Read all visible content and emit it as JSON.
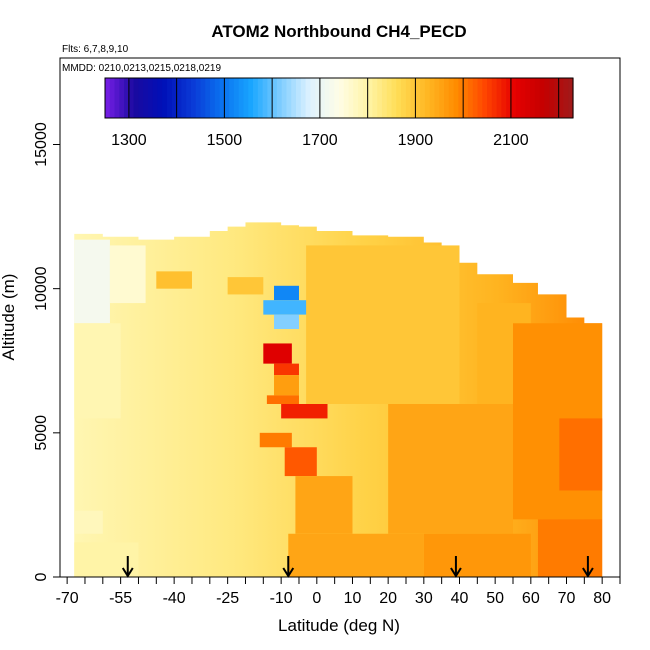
{
  "chart_data": {
    "type": "heatmap",
    "title": "ATOM2 Northbound CH4_PECD",
    "flights_label": "Flts: 6,7,8,9,10",
    "dates_label": "MMDD: 0210,0213,0215,0218,0219",
    "xlabel": "Latitude (deg N)",
    "ylabel": "Altitude (m)",
    "xlim": [
      -72,
      85
    ],
    "ylim": [
      0,
      18000
    ],
    "x_ticks": [
      -70,
      -55,
      -40,
      -25,
      -10,
      0,
      10,
      20,
      30,
      40,
      50,
      60,
      70,
      80
    ],
    "x_minor_ticks": [
      -65,
      -60,
      -50,
      -45,
      -35,
      -30,
      -20,
      -15,
      -5,
      5,
      15,
      25,
      35,
      45,
      55,
      65,
      75,
      85
    ],
    "y_ticks": [
      0,
      5000,
      10000,
      15000
    ],
    "colorbar": {
      "min": 1250,
      "max": 2230,
      "labels": [
        1300,
        1500,
        1700,
        1900,
        2100
      ],
      "bin_edges": [
        1300,
        1400,
        1500,
        1600,
        1700,
        1800,
        1900,
        2000,
        2100,
        2200
      ],
      "colors": [
        "#7a1fe8",
        "#1a0aa0",
        "#0010b8",
        "#0a3ad6",
        "#0a72f0",
        "#19a6ff",
        "#7fcdff",
        "#dff2ff",
        "#fffde6",
        "#fff4a6",
        "#ffdd55",
        "#ffb824",
        "#ff8c00",
        "#ff4500",
        "#e60000",
        "#c40000",
        "#a01a1a"
      ]
    },
    "profile_markers": [
      -53,
      -8,
      39,
      76
    ],
    "background_value": 1850,
    "ceiling": [
      [
        -68,
        11900
      ],
      [
        -60,
        11800
      ],
      [
        -50,
        11700
      ],
      [
        -40,
        11800
      ],
      [
        -30,
        12000
      ],
      [
        -25,
        12150
      ],
      [
        -20,
        12300
      ],
      [
        -10,
        12200
      ],
      [
        -5,
        12150
      ],
      [
        0,
        12000
      ],
      [
        10,
        11850
      ],
      [
        20,
        11800
      ],
      [
        30,
        11600
      ],
      [
        35,
        11300
      ],
      [
        40,
        10900
      ],
      [
        45,
        10500
      ],
      [
        55,
        10200
      ],
      [
        62,
        9800
      ],
      [
        70,
        9000
      ],
      [
        75,
        8800
      ],
      [
        80,
        8800
      ]
    ],
    "cells": [
      {
        "lat": [
          -68,
          -58
        ],
        "alt": [
          8800,
          11700
        ],
        "v": 1720
      },
      {
        "lat": [
          -58,
          -48
        ],
        "alt": [
          9500,
          11500
        ],
        "v": 1760
      },
      {
        "lat": [
          -68,
          -55
        ],
        "alt": [
          5500,
          8800
        ],
        "v": 1790
      },
      {
        "lat": [
          -68,
          -60
        ],
        "alt": [
          1500,
          2300
        ],
        "v": 1780
      },
      {
        "lat": [
          -68,
          -50
        ],
        "alt": [
          0,
          1200
        ],
        "v": 1800
      },
      {
        "lat": [
          -45,
          -35
        ],
        "alt": [
          10000,
          10600
        ],
        "v": 1910
      },
      {
        "lat": [
          -25,
          -15
        ],
        "alt": [
          9800,
          10400
        ],
        "v": 1900
      },
      {
        "lat": [
          -12,
          -5
        ],
        "alt": [
          9600,
          10100
        ],
        "v": 1520
      },
      {
        "lat": [
          -15,
          -2
        ],
        "alt": [
          9100,
          9600
        ],
        "v": 1580
      },
      {
        "lat": [
          -12,
          -5
        ],
        "alt": [
          8600,
          9100
        ],
        "v": 1620
      },
      {
        "lat": [
          -15,
          -7
        ],
        "alt": [
          7400,
          8100
        ],
        "v": 2120
      },
      {
        "lat": [
          -12,
          -5
        ],
        "alt": [
          7000,
          7400
        ],
        "v": 2060
      },
      {
        "lat": [
          -12,
          -5
        ],
        "alt": [
          6300,
          7000
        ],
        "v": 1960
      },
      {
        "lat": [
          -14,
          -5
        ],
        "alt": [
          6000,
          6300
        ],
        "v": 2010
      },
      {
        "lat": [
          -10,
          3
        ],
        "alt": [
          5500,
          6000
        ],
        "v": 2080
      },
      {
        "lat": [
          -16,
          -7
        ],
        "alt": [
          4500,
          5000
        ],
        "v": 2000
      },
      {
        "lat": [
          -9,
          0
        ],
        "alt": [
          3500,
          4500
        ],
        "v": 2030
      },
      {
        "lat": [
          -6,
          10
        ],
        "alt": [
          1500,
          3500
        ],
        "v": 1950
      },
      {
        "lat": [
          -8,
          30
        ],
        "alt": [
          0,
          1500
        ],
        "v": 1950
      },
      {
        "lat": [
          -3,
          40
        ],
        "alt": [
          6000,
          11500
        ],
        "v": 1900
      },
      {
        "lat": [
          20,
          55
        ],
        "alt": [
          1500,
          6000
        ],
        "v": 1950
      },
      {
        "lat": [
          30,
          60
        ],
        "alt": [
          0,
          1500
        ],
        "v": 1970
      },
      {
        "lat": [
          45,
          60
        ],
        "alt": [
          6000,
          9500
        ],
        "v": 1930
      },
      {
        "lat": [
          55,
          80
        ],
        "alt": [
          2000,
          8800
        ],
        "v": 1980
      },
      {
        "lat": [
          62,
          80
        ],
        "alt": [
          0,
          2000
        ],
        "v": 2000
      },
      {
        "lat": [
          68,
          80
        ],
        "alt": [
          3000,
          5500
        ],
        "v": 2010
      }
    ]
  }
}
